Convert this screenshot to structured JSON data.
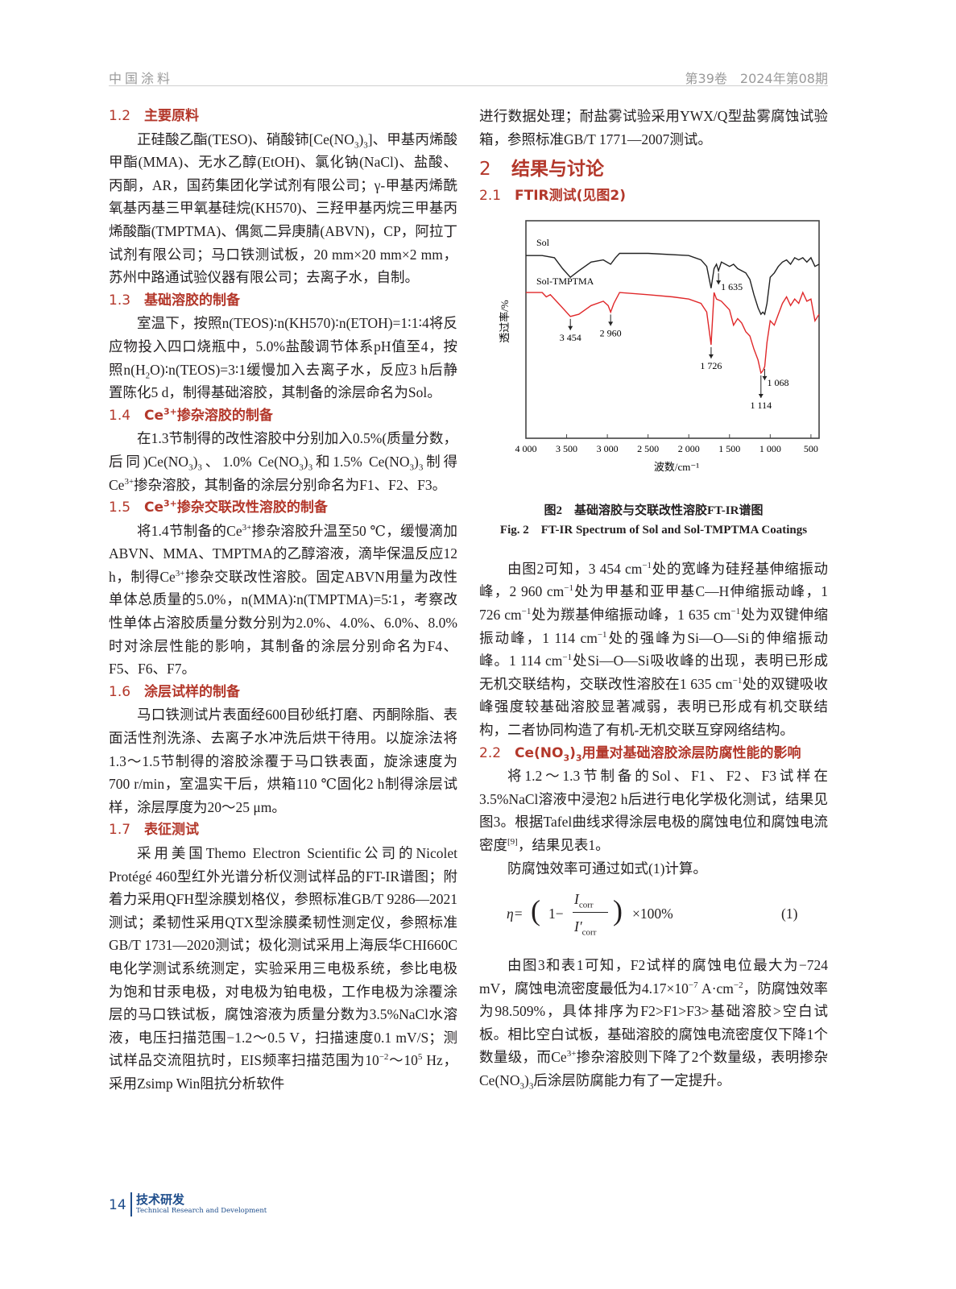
{
  "header": {
    "journal": "中国涂料",
    "issue": "第39卷　2024年第08期"
  },
  "left": [
    {
      "type": "h3",
      "num": "1.2",
      "title": [
        {
          "t": "主要原料"
        }
      ]
    },
    {
      "type": "p",
      "runs": [
        {
          "t": "正硅酸乙酯(TESO)、硝酸铈[Ce(NO"
        },
        {
          "sub": "3"
        },
        {
          "t": ")"
        },
        {
          "sub": "3"
        },
        {
          "t": "]、甲基丙烯酸甲酯(MMA)、无水乙醇(EtOH)、氯化钠(NaCl)、盐酸、丙酮，AR，国药集团化学试剂有限公司；γ-甲基丙烯酰氧基丙基三甲氧基硅烷(KH570)、三羟甲基丙烷三甲基丙烯酸酯(TMPTMA)、偶氮二异庚腈(ABVN)，CP，阿拉丁试剂有限公司；马口铁测试板，20 mm×20 mm×2 mm，苏州中路通试验仪器有限公司；去离子水，自制。"
        }
      ]
    },
    {
      "type": "h3",
      "num": "1.3",
      "title": [
        {
          "t": "基础溶胶的制备"
        }
      ]
    },
    {
      "type": "p",
      "runs": [
        {
          "t": "室温下，按照n(TEOS)∶n(KH570)∶n(ETOH)=1∶1∶4将反应物投入四口烧瓶中，5.0%盐酸调节体系pH值至4，按照n(H"
        },
        {
          "sub": "2"
        },
        {
          "t": "O)∶n(TEOS)=3∶1缓慢加入去离子水，反应3 h后静置陈化5 d，制得基础溶胶，其制备的涂层命名为Sol。"
        }
      ]
    },
    {
      "type": "h3",
      "num": "1.4",
      "title": [
        {
          "t": "Ce"
        },
        {
          "sup": "3+"
        },
        {
          "t": "掺杂溶胶的制备"
        }
      ]
    },
    {
      "type": "p",
      "runs": [
        {
          "t": "在1.3节制得的改性溶胶中分别加入0.5%(质量分数，后同)Ce(NO"
        },
        {
          "sub": "3"
        },
        {
          "t": ")"
        },
        {
          "sub": "3"
        },
        {
          "t": "、1.0% Ce(NO"
        },
        {
          "sub": "3"
        },
        {
          "t": ")"
        },
        {
          "sub": "3"
        },
        {
          "t": "和1.5% Ce(NO"
        },
        {
          "sub": "3"
        },
        {
          "t": ")"
        },
        {
          "sub": "3"
        },
        {
          "t": "制得Ce"
        },
        {
          "sup": "3+"
        },
        {
          "t": "掺杂溶胶，其制备的涂层分别命名为F1、F2、F3。"
        }
      ]
    },
    {
      "type": "h3",
      "num": "1.5",
      "title": [
        {
          "t": "Ce"
        },
        {
          "sup": "3+"
        },
        {
          "t": "掺杂交联改性溶胶的制备"
        }
      ]
    },
    {
      "type": "p",
      "runs": [
        {
          "t": "将1.4节制备的Ce"
        },
        {
          "sup": "3+"
        },
        {
          "t": "掺杂溶胶升温至50 ℃，缓慢滴加ABVN、MMA、TMPTMA的乙醇溶液，滴毕保温反应12 h，制得Ce"
        },
        {
          "sup": "3+"
        },
        {
          "t": "掺杂交联改性溶胶。固定ABVN用量为改性单体总质量的5.0%，n(MMA)∶n(TMPTMA)=5∶1，考察改性单体占溶胶质量分数分别为2.0%、4.0%、6.0%、8.0%时对涂层性能的影响，其制备的涂层分别命名为F4、F5、F6、F7。"
        }
      ]
    },
    {
      "type": "h3",
      "num": "1.6",
      "title": [
        {
          "t": "涂层试样的制备"
        }
      ]
    },
    {
      "type": "p",
      "runs": [
        {
          "t": "马口铁测试片表面经600目砂纸打磨、丙酮除脂、表面活性剂洗涤、去离子水冲洗后烘干待用。以旋涂法将1.3～1.5节制得的溶胶涂覆于马口铁表面，旋涂速度为700 r/min，室温实干后，烘箱110 ℃固化2 h制得涂层试样，涂层厚度为20～25 μm。"
        }
      ]
    },
    {
      "type": "h3",
      "num": "1.7",
      "title": [
        {
          "t": "表征测试"
        }
      ]
    },
    {
      "type": "p",
      "runs": [
        {
          "t": "采用美国Themo Electron Scientific公司的Nicolet Protégé 460型红外光谱分析仪测试样品的FT-IR谱图；附着力采用QFH型涂膜划格仪，参照标准GB/T 9286—2021测试；柔韧性采用QTX型涂膜柔韧性测定仪，参照标准GB/T 1731—2020测试；极化测试采用上海辰华CHI660C电化学测试系统测定，实验采用三电极系统，参比电极为饱和甘汞电极，对电极为铂电极，工作电极为涂覆涂层的马口铁试板，腐蚀溶液为质量分数为3.5%NaCl水溶液，电压扫描范围−1.2～0.5 V，扫描速度0.1 mV/S；测试样品交流阻抗时，EIS频率扫描范围为10"
        },
        {
          "sup": "−2"
        },
        {
          "t": "～10"
        },
        {
          "sup": "5"
        },
        {
          "t": " Hz，采用Zsimp Win阻抗分析软件"
        }
      ]
    }
  ],
  "right_top": [
    {
      "type": "pn",
      "runs": [
        {
          "t": "进行数据处理；耐盐雾试验采用YWX/Q型盐雾腐蚀试验箱，参照标准GB/T 1771—2007测试。"
        }
      ]
    },
    {
      "type": "h2",
      "num": "2",
      "title": [
        {
          "t": "结果与讨论"
        }
      ]
    },
    {
      "type": "h3",
      "num": "2.1",
      "title": [
        {
          "t": "FTIR测试(见图2)"
        }
      ]
    }
  ],
  "figure": {
    "caption_cn": "图2　基础溶胶与交联改性溶胶FT-IR谱图",
    "caption_en": "Fig. 2　FT-IR Spectrum of Sol and Sol-TMPTMA Coatings"
  },
  "chart_data": {
    "type": "line",
    "xlabel": "波数/cm⁻¹",
    "ylabel": "透过率/%",
    "xlim": [
      4000,
      400
    ],
    "x_reversed": true,
    "ylim": [
      0,
      100
    ],
    "y_ticks_shown": false,
    "grid": false,
    "x_ticks": [
      4000,
      3500,
      3000,
      2500,
      2000,
      1500,
      1000,
      500
    ],
    "x_tick_labels": [
      "4 000",
      "3 500",
      "3 000",
      "2 500",
      "2 000",
      "1 500",
      "1 000",
      "500"
    ],
    "series": [
      {
        "name": "Sol",
        "color": "#222222",
        "x": [
          4000,
          3800,
          3650,
          3550,
          3454,
          3350,
          3200,
          3050,
          2960,
          2900,
          2850,
          2500,
          2000,
          1850,
          1780,
          1726,
          1690,
          1660,
          1635,
          1600,
          1500,
          1450,
          1400,
          1300,
          1250,
          1200,
          1150,
          1114,
          1090,
          1068,
          1040,
          1000,
          950,
          900,
          850,
          800,
          750,
          700,
          650,
          600,
          550,
          500,
          450,
          400
        ],
        "y": [
          84,
          84,
          83,
          78,
          74,
          77,
          81,
          82,
          80,
          83,
          85,
          85,
          84,
          82,
          79,
          69,
          78,
          80,
          77,
          81,
          79,
          80,
          78,
          76,
          73,
          66,
          60,
          57,
          58,
          57,
          62,
          74,
          76,
          79,
          81,
          82,
          80,
          83,
          82,
          83,
          81,
          83,
          79,
          80
        ]
      },
      {
        "name": "Sol-TMPTMA",
        "color": "#e0282a",
        "x": [
          4000,
          3800,
          3750,
          3700,
          3600,
          3454,
          3350,
          3200,
          3050,
          2990,
          2960,
          2920,
          2850,
          2500,
          2200,
          2000,
          1850,
          1780,
          1726,
          1690,
          1660,
          1600,
          1500,
          1450,
          1400,
          1350,
          1300,
          1250,
          1200,
          1150,
          1114,
          1090,
          1068,
          1040,
          1000,
          950,
          900,
          850,
          800,
          750,
          700,
          650,
          600,
          550,
          500,
          450,
          400
        ],
        "y": [
          67,
          67,
          65,
          66,
          62,
          56,
          57,
          61,
          63,
          61,
          58,
          62,
          67,
          66,
          65,
          64,
          62,
          58,
          43,
          67,
          64,
          63,
          59,
          52,
          55,
          53,
          49,
          47,
          41,
          36,
          30,
          31,
          33,
          44,
          54,
          52,
          57,
          62,
          65,
          61,
          64,
          62,
          67,
          63,
          64,
          54,
          57
        ]
      }
    ],
    "annotations": [
      {
        "series": "Sol",
        "x": 1635,
        "label": "1 635"
      },
      {
        "series": "Sol-TMPTMA",
        "x": 3454,
        "label": "3 454"
      },
      {
        "series": "Sol-TMPTMA",
        "x": 2960,
        "label": "2 960"
      },
      {
        "series": "Sol-TMPTMA",
        "x": 1726,
        "label": "1 726"
      },
      {
        "series": "Sol-TMPTMA",
        "x": 1068,
        "label": "1 068"
      },
      {
        "series": "Sol-TMPTMA",
        "x": 1114,
        "label": "1 114"
      }
    ]
  },
  "right_bottom": [
    {
      "type": "p",
      "runs": [
        {
          "t": "由图2可知，3 454 cm"
        },
        {
          "sup": "−1"
        },
        {
          "t": "处的宽峰为硅羟基伸缩振动峰，2 960 cm"
        },
        {
          "sup": "−1"
        },
        {
          "t": "处为甲基和亚甲基C—H伸缩振动峰，1 726 cm"
        },
        {
          "sup": "−1"
        },
        {
          "t": "处为羰基伸缩振动峰，1 635 cm"
        },
        {
          "sup": "−1"
        },
        {
          "t": "处为双键伸缩振动峰，1 114 cm"
        },
        {
          "sup": "−1"
        },
        {
          "t": "处的强峰为Si—O—Si的伸缩振动峰。1 114 cm"
        },
        {
          "sup": "−1"
        },
        {
          "t": "处Si—O—Si吸收峰的出现，表明已形成无机交联结构，交联改性溶胶在1 635 cm"
        },
        {
          "sup": "−1"
        },
        {
          "t": "处的双键吸收峰强度较基础溶胶显著减弱，表明已形成有机交联结构，二者协同构造了有机-无机交联互穿网络结构。"
        }
      ]
    },
    {
      "type": "h3",
      "num": "2.2",
      "title": [
        {
          "t": "Ce(NO"
        },
        {
          "sub": "3"
        },
        {
          "t": ")"
        },
        {
          "sub": "3"
        },
        {
          "t": "用量对基础溶胶涂层防腐性能的影响"
        }
      ]
    },
    {
      "type": "p",
      "runs": [
        {
          "t": "将1.2～1.3节制备的Sol、F1、F2、F3试样在3.5%NaCl溶液中浸泡2 h后进行电化学极化测试，结果见图3。根据Tafel曲线求得涂层电极的腐蚀电位和腐蚀电流密度"
        },
        {
          "sup": "[9]"
        },
        {
          "t": "，结果见表1。"
        }
      ]
    },
    {
      "type": "p",
      "runs": [
        {
          "t": "防腐蚀效率可通过如式(1)计算。"
        }
      ]
    }
  ],
  "equation": {
    "lhs": "η=",
    "one": "1−",
    "num": "I",
    "num_sub": "corr",
    "den": "I′",
    "den_sub": "corr",
    "rhs": "×100%",
    "label": "(1)"
  },
  "right_end": [
    {
      "type": "p",
      "runs": [
        {
          "t": "由图3和表1可知，F2试样的腐蚀电位最大为−724 mV，腐蚀电流密度最低为4.17×10"
        },
        {
          "sup": "−7"
        },
        {
          "t": " A·cm"
        },
        {
          "sup": "−2"
        },
        {
          "t": "，防腐蚀效率为98.509%，具体排序为F2>F1>F3>基础溶胶>空白试板。相比空白试板，基础溶胶的腐蚀电流密度仅下降1个数量级，而Ce"
        },
        {
          "sup": "3+"
        },
        {
          "t": "掺杂溶胶则下降了2个数量级，表明掺杂Ce(NO"
        },
        {
          "sub": "3"
        },
        {
          "t": ")"
        },
        {
          "sub": "3"
        },
        {
          "t": "后涂层防腐能力有了一定提升。"
        }
      ]
    }
  ],
  "footer": {
    "page": "14",
    "section_cn": "技术研发",
    "section_en": "Technical Research and Development"
  }
}
